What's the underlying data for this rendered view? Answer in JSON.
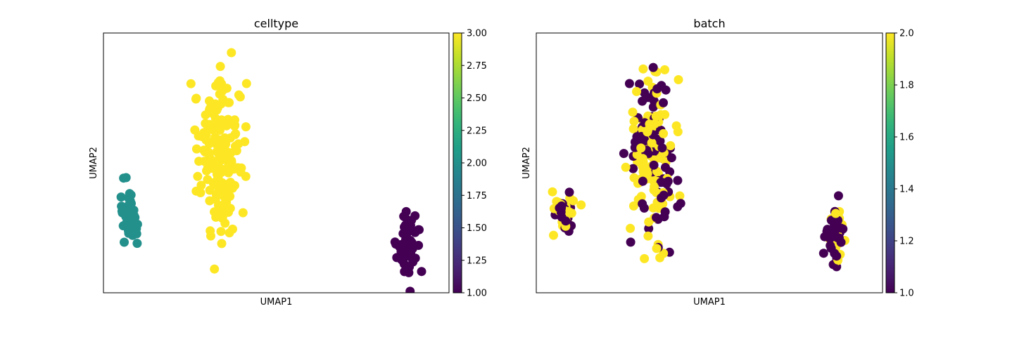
{
  "chart_data": [
    {
      "type": "scatter",
      "title": "celltype",
      "xlabel": "UMAP1",
      "ylabel": "UMAP2",
      "colorbar": {
        "min": 1.0,
        "max": 3.0,
        "ticks": [
          "1.00",
          "1.25",
          "1.50",
          "1.75",
          "2.00",
          "2.25",
          "2.50",
          "2.75",
          "3.00"
        ],
        "colormap": "viridis"
      },
      "grid": false,
      "clusters": [
        {
          "value": 2.0,
          "color": "#21918c",
          "center": [
            1.0,
            3.0
          ],
          "spread": [
            0.35,
            1.2
          ],
          "n": 45
        },
        {
          "value": 3.0,
          "color": "#fde725",
          "center": [
            4.2,
            5.5
          ],
          "spread": [
            0.75,
            3.5
          ],
          "n": 190
        },
        {
          "value": 1.0,
          "color": "#440154",
          "center": [
            11.0,
            2.0
          ],
          "spread": [
            0.4,
            1.5
          ],
          "n": 55
        }
      ]
    },
    {
      "type": "scatter",
      "title": "batch",
      "xlabel": "UMAP1",
      "ylabel": "UMAP2",
      "colorbar": {
        "min": 1.0,
        "max": 2.0,
        "ticks": [
          "1.0",
          "1.2",
          "1.4",
          "1.6",
          "1.8",
          "2.0"
        ],
        "colormap": "viridis"
      },
      "grid": false,
      "clusters": [
        {
          "label": "left",
          "center": [
            1.0,
            3.2
          ],
          "spread": [
            0.35,
            1.0
          ],
          "n": 45,
          "batch_values": [
            1,
            2
          ],
          "colors": [
            "#440154",
            "#fde725"
          ]
        },
        {
          "label": "middle",
          "center": [
            4.2,
            5.5
          ],
          "spread": [
            0.8,
            3.6
          ],
          "n": 190,
          "batch_values": [
            1,
            2
          ],
          "colors": [
            "#440154",
            "#fde725"
          ]
        },
        {
          "label": "right",
          "center": [
            10.8,
            2.2
          ],
          "spread": [
            0.35,
            1.5
          ],
          "n": 55,
          "batch_values": [
            1,
            2
          ],
          "colors": [
            "#440154",
            "#fde725"
          ]
        }
      ]
    }
  ]
}
